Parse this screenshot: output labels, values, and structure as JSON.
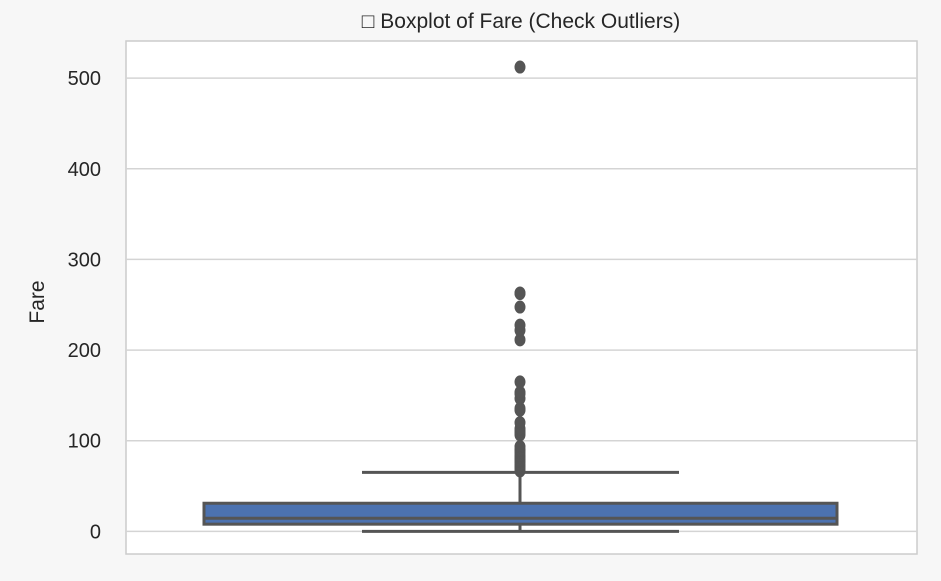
{
  "chart_data": {
    "type": "box",
    "title": "□ Boxplot of Fare (Check Outliers)",
    "xlabel": "",
    "ylabel": "Fare",
    "ylim": [
      -25,
      541
    ],
    "yticks": [
      0,
      100,
      200,
      300,
      400,
      500
    ],
    "grid": true,
    "box": {
      "min": 0,
      "q1": 7.9,
      "median": 14.45,
      "q3": 31,
      "whisker_high": 65,
      "outliers": [
        66.6,
        69.3,
        71.3,
        73.5,
        76.7,
        77.3,
        78.9,
        79.7,
        82.2,
        83.2,
        86.5,
        89.1,
        90,
        93.5,
        106.4,
        108.9,
        110.9,
        113.3,
        120,
        133.7,
        135.6,
        146.5,
        151.6,
        153.5,
        164.9,
        211.3,
        221.8,
        227.5,
        247.5,
        262.4,
        263,
        512.3
      ],
      "color": "#4c72b0",
      "line_color": "#555555"
    }
  }
}
